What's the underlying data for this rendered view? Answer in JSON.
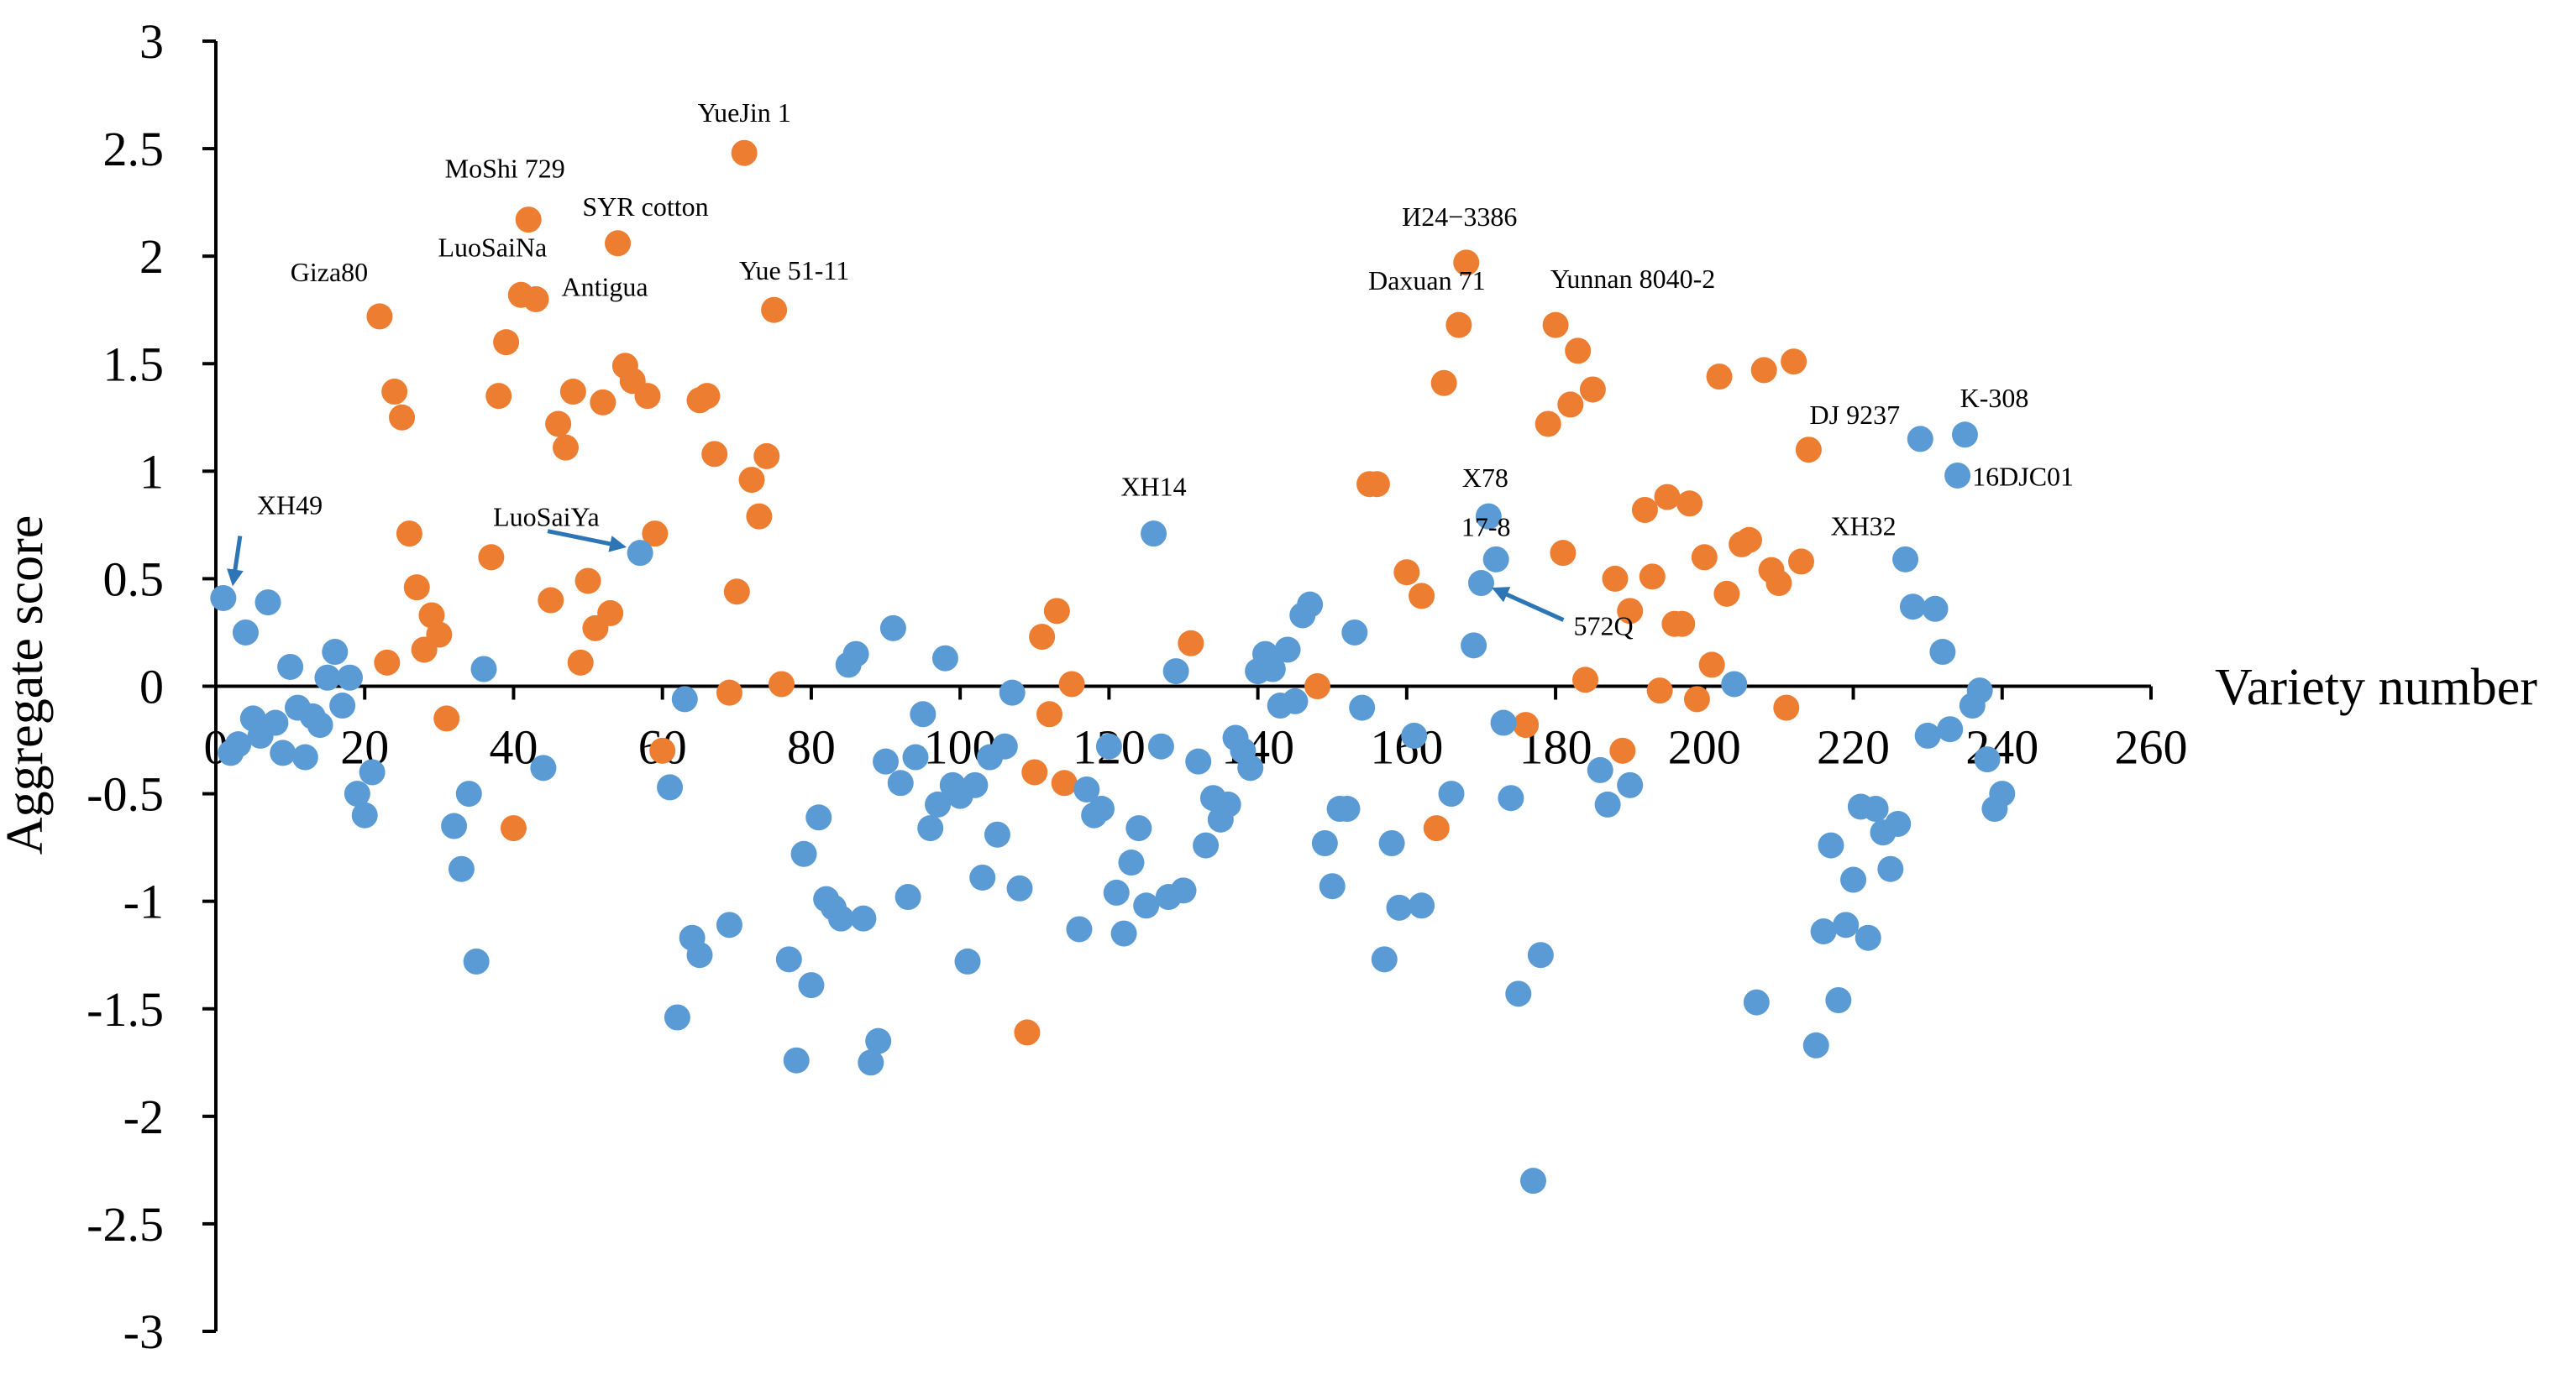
{
  "chart_data": {
    "type": "scatter",
    "title": "",
    "xlabel": "Variety number",
    "ylabel": "Aggregate score",
    "xlim": [
      0,
      260
    ],
    "ylim": [
      -3,
      3
    ],
    "xticks": [
      "0",
      "20",
      "40",
      "60",
      "80",
      "100",
      "120",
      "140",
      "160",
      "180",
      "200",
      "220",
      "240",
      "260"
    ],
    "yticks": [
      "3",
      "2.5",
      "2",
      "1.5",
      "1",
      "0.5",
      "0",
      "-0.5",
      "-1",
      "-1.5",
      "-2",
      "-2.5",
      "-3"
    ],
    "grid": false,
    "legend": "none",
    "series": [
      {
        "name": "orange",
        "color": "#ED7D31",
        "points": [
          [
            22,
            1.72
          ],
          [
            23,
            0.11
          ],
          [
            24,
            1.37
          ],
          [
            25,
            1.25
          ],
          [
            26,
            0.71
          ],
          [
            27,
            0.46
          ],
          [
            28,
            0.17
          ],
          [
            29,
            0.33
          ],
          [
            30,
            0.24
          ],
          [
            31,
            -0.15
          ],
          [
            37,
            0.6
          ],
          [
            38,
            1.35
          ],
          [
            39,
            1.6
          ],
          [
            40,
            -0.66
          ],
          [
            41,
            1.82
          ],
          [
            42,
            2.17
          ],
          [
            43,
            1.8
          ],
          [
            45,
            0.4
          ],
          [
            46,
            1.22
          ],
          [
            47,
            1.11
          ],
          [
            48,
            1.37
          ],
          [
            49,
            0.11
          ],
          [
            50,
            0.49
          ],
          [
            51,
            0.27
          ],
          [
            52,
            1.32
          ],
          [
            53,
            0.34
          ],
          [
            54,
            2.06
          ],
          [
            55,
            1.49
          ],
          [
            56,
            1.42
          ],
          [
            58,
            1.35
          ],
          [
            59,
            0.71
          ],
          [
            60,
            -0.3
          ],
          [
            65,
            1.33
          ],
          [
            66,
            1.35
          ],
          [
            67,
            1.08
          ],
          [
            69,
            -0.03
          ],
          [
            70,
            0.44
          ],
          [
            71,
            2.48
          ],
          [
            72,
            0.96
          ],
          [
            73,
            0.79
          ],
          [
            74,
            1.07
          ],
          [
            75,
            1.75
          ],
          [
            76,
            0.01
          ],
          [
            109,
            -1.61
          ],
          [
            110,
            -0.4
          ],
          [
            111,
            0.23
          ],
          [
            112,
            -0.13
          ],
          [
            113,
            0.35
          ],
          [
            114,
            -0.45
          ],
          [
            115,
            0.01
          ],
          [
            131,
            0.2
          ],
          [
            148,
            0.0
          ],
          [
            155,
            0.94
          ],
          [
            156,
            0.94
          ],
          [
            160,
            0.53
          ],
          [
            162,
            0.42
          ],
          [
            164,
            -0.66
          ],
          [
            165,
            1.41
          ],
          [
            167,
            1.68
          ],
          [
            168,
            1.97
          ],
          [
            176,
            -0.18
          ],
          [
            179,
            1.22
          ],
          [
            180,
            1.68
          ],
          [
            181,
            0.62
          ],
          [
            182,
            1.31
          ],
          [
            183,
            1.56
          ],
          [
            184,
            0.03
          ],
          [
            185,
            1.38
          ],
          [
            188,
            0.5
          ],
          [
            189,
            -0.3
          ],
          [
            190,
            0.35
          ],
          [
            192,
            0.82
          ],
          [
            193,
            0.51
          ],
          [
            194,
            -0.02
          ],
          [
            195,
            0.88
          ],
          [
            196,
            0.29
          ],
          [
            197,
            0.29
          ],
          [
            198,
            0.85
          ],
          [
            199,
            -0.06
          ],
          [
            200,
            0.6
          ],
          [
            201,
            0.1
          ],
          [
            202,
            1.44
          ],
          [
            203,
            0.43
          ],
          [
            205,
            0.66
          ],
          [
            206,
            0.68
          ],
          [
            208,
            1.47
          ],
          [
            209,
            0.54
          ],
          [
            210,
            0.48
          ],
          [
            211,
            -0.1
          ],
          [
            212,
            1.51
          ],
          [
            213,
            0.58
          ],
          [
            214,
            1.1
          ]
        ]
      },
      {
        "name": "blue",
        "color": "#5B9BD5",
        "points": [
          [
            1,
            0.41
          ],
          [
            2,
            -0.31
          ],
          [
            3,
            -0.27
          ],
          [
            4,
            0.25
          ],
          [
            5,
            -0.15
          ],
          [
            6,
            -0.23
          ],
          [
            7,
            0.39
          ],
          [
            8,
            -0.17
          ],
          [
            9,
            -0.31
          ],
          [
            10,
            0.09
          ],
          [
            11,
            -0.1
          ],
          [
            12,
            -0.33
          ],
          [
            13,
            -0.14
          ],
          [
            14,
            -0.18
          ],
          [
            15,
            0.04
          ],
          [
            16,
            0.16
          ],
          [
            17,
            -0.09
          ],
          [
            18,
            0.04
          ],
          [
            19,
            -0.5
          ],
          [
            20,
            -0.6
          ],
          [
            21,
            -0.4
          ],
          [
            32,
            -0.65
          ],
          [
            33,
            -0.85
          ],
          [
            34,
            -0.5
          ],
          [
            35,
            -1.28
          ],
          [
            36,
            0.08
          ],
          [
            44,
            -0.38
          ],
          [
            57,
            0.62
          ],
          [
            61,
            -0.47
          ],
          [
            62,
            -1.54
          ],
          [
            63,
            -0.06
          ],
          [
            64,
            -1.17
          ],
          [
            65,
            -1.25
          ],
          [
            69,
            -1.11
          ],
          [
            77,
            -1.27
          ],
          [
            78,
            -1.74
          ],
          [
            79,
            -0.78
          ],
          [
            80,
            -1.39
          ],
          [
            81,
            -0.61
          ],
          [
            82,
            -0.99
          ],
          [
            83,
            -1.03
          ],
          [
            84,
            -1.08
          ],
          [
            85,
            0.1
          ],
          [
            86,
            0.15
          ],
          [
            87,
            -1.08
          ],
          [
            88,
            -1.75
          ],
          [
            89,
            -1.65
          ],
          [
            90,
            -0.35
          ],
          [
            91,
            0.27
          ],
          [
            92,
            -0.45
          ],
          [
            93,
            -0.98
          ],
          [
            94,
            -0.33
          ],
          [
            95,
            -0.13
          ],
          [
            96,
            -0.66
          ],
          [
            97,
            -0.55
          ],
          [
            98,
            0.13
          ],
          [
            99,
            -0.46
          ],
          [
            100,
            -0.51
          ],
          [
            101,
            -1.28
          ],
          [
            102,
            -0.46
          ],
          [
            103,
            -0.89
          ],
          [
            104,
            -0.33
          ],
          [
            105,
            -0.69
          ],
          [
            106,
            -0.28
          ],
          [
            107,
            -0.03
          ],
          [
            108,
            -0.94
          ],
          [
            116,
            -1.13
          ],
          [
            117,
            -0.48
          ],
          [
            118,
            -0.6
          ],
          [
            119,
            -0.57
          ],
          [
            120,
            -0.28
          ],
          [
            121,
            -0.96
          ],
          [
            122,
            -1.15
          ],
          [
            123,
            -0.82
          ],
          [
            124,
            -0.66
          ],
          [
            125,
            -1.02
          ],
          [
            126,
            0.71
          ],
          [
            127,
            -0.28
          ],
          [
            128,
            -0.98
          ],
          [
            129,
            0.07
          ],
          [
            130,
            -0.95
          ],
          [
            132,
            -0.35
          ],
          [
            133,
            -0.74
          ],
          [
            134,
            -0.52
          ],
          [
            135,
            -0.62
          ],
          [
            136,
            -0.55
          ],
          [
            137,
            -0.24
          ],
          [
            138,
            -0.3
          ],
          [
            139,
            -0.38
          ],
          [
            140,
            0.07
          ],
          [
            141,
            0.15
          ],
          [
            142,
            0.08
          ],
          [
            143,
            -0.09
          ],
          [
            144,
            0.17
          ],
          [
            145,
            -0.07
          ],
          [
            146,
            0.33
          ],
          [
            147,
            0.38
          ],
          [
            149,
            -0.73
          ],
          [
            150,
            -0.93
          ],
          [
            151,
            -0.57
          ],
          [
            152,
            -0.57
          ],
          [
            153,
            0.25
          ],
          [
            154,
            -0.1
          ],
          [
            157,
            -1.27
          ],
          [
            158,
            -0.73
          ],
          [
            159,
            -1.03
          ],
          [
            161,
            -0.23
          ],
          [
            162,
            -1.02
          ],
          [
            166,
            -0.5
          ],
          [
            169,
            0.19
          ],
          [
            170,
            0.48
          ],
          [
            171,
            0.79
          ],
          [
            172,
            0.59
          ],
          [
            173,
            -0.17
          ],
          [
            174,
            -0.52
          ],
          [
            175,
            -1.43
          ],
          [
            177,
            -2.3
          ],
          [
            178,
            -1.25
          ],
          [
            186,
            -0.39
          ],
          [
            187,
            -0.55
          ],
          [
            190,
            -0.46
          ],
          [
            204,
            0.01
          ],
          [
            207,
            -1.47
          ],
          [
            215,
            -1.67
          ],
          [
            216,
            -1.14
          ],
          [
            217,
            -0.74
          ],
          [
            218,
            -1.46
          ],
          [
            219,
            -1.11
          ],
          [
            220,
            -0.9
          ],
          [
            221,
            -0.56
          ],
          [
            222,
            -1.17
          ],
          [
            223,
            -0.57
          ],
          [
            224,
            -0.68
          ],
          [
            225,
            -0.85
          ],
          [
            226,
            -0.64
          ],
          [
            227,
            0.59
          ],
          [
            228,
            0.37
          ],
          [
            229,
            1.15
          ],
          [
            230,
            -0.23
          ],
          [
            231,
            0.36
          ],
          [
            232,
            0.16
          ],
          [
            233,
            -0.2
          ],
          [
            234,
            0.98
          ],
          [
            235,
            1.17
          ],
          [
            236,
            -0.09
          ],
          [
            237,
            -0.02
          ],
          [
            238,
            -0.34
          ],
          [
            239,
            -0.57
          ],
          [
            240,
            -0.5
          ]
        ]
      }
    ],
    "annotations": [
      {
        "text": "XH49",
        "x": 1,
        "y": 0.41,
        "arrow": true
      },
      {
        "text": "LuoSaiYa",
        "x": 57,
        "y": 0.62,
        "arrow": true
      },
      {
        "text": "572Q",
        "x": 170,
        "y": 0.48,
        "arrow": true
      },
      {
        "text": "Giza80",
        "x": 22,
        "y": 1.72
      },
      {
        "text": "LuoSaiNa",
        "x": 41,
        "y": 1.82
      },
      {
        "text": "MoShi 729",
        "x": 42,
        "y": 2.17
      },
      {
        "text": "Antigua",
        "x": 43,
        "y": 1.8
      },
      {
        "text": "SYR cotton",
        "x": 54,
        "y": 2.06
      },
      {
        "text": "YueJin 1",
        "x": 71,
        "y": 2.48
      },
      {
        "text": "Yue 51-11",
        "x": 75,
        "y": 1.75
      },
      {
        "text": "XH14",
        "x": 126,
        "y": 0.71
      },
      {
        "text": "И24−3386",
        "x": 168,
        "y": 1.97
      },
      {
        "text": "Daxuan 71",
        "x": 167,
        "y": 1.68
      },
      {
        "text": "Yunnan 8040-2",
        "x": 180,
        "y": 1.68
      },
      {
        "text": "X78",
        "x": 171,
        "y": 0.79
      },
      {
        "text": "17-8",
        "x": 172,
        "y": 0.59
      },
      {
        "text": "DJ 9237",
        "x": 229,
        "y": 1.15
      },
      {
        "text": "K-308",
        "x": 235,
        "y": 1.17
      },
      {
        "text": "16DJC01",
        "x": 234,
        "y": 0.98
      },
      {
        "text": "XH32",
        "x": 227,
        "y": 0.59
      }
    ]
  }
}
